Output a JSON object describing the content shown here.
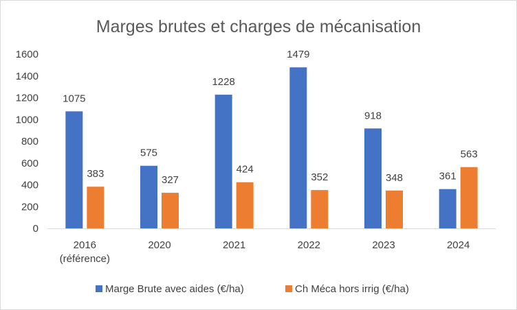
{
  "chart_data": {
    "type": "bar",
    "title": "Marges brutes et charges de mécanisation",
    "categories": [
      [
        "2016",
        "(référence)"
      ],
      [
        "2020"
      ],
      [
        "2021"
      ],
      [
        "2022"
      ],
      [
        "2023"
      ],
      [
        "2024"
      ]
    ],
    "series": [
      {
        "name": "Marge Brute avec aides (€/ha)",
        "color": "#4472c4",
        "values": [
          1075,
          575,
          1228,
          1479,
          918,
          361
        ]
      },
      {
        "name": "Ch Méca hors irrig (€/ha)",
        "color": "#ed7d31",
        "values": [
          383,
          327,
          424,
          352,
          348,
          563
        ]
      }
    ],
    "ylim": [
      0,
      1600
    ],
    "yticks": [
      0,
      200,
      400,
      600,
      800,
      1000,
      1200,
      1400,
      1600
    ],
    "grid": false,
    "data_labels": true,
    "legend_position": "bottom"
  }
}
